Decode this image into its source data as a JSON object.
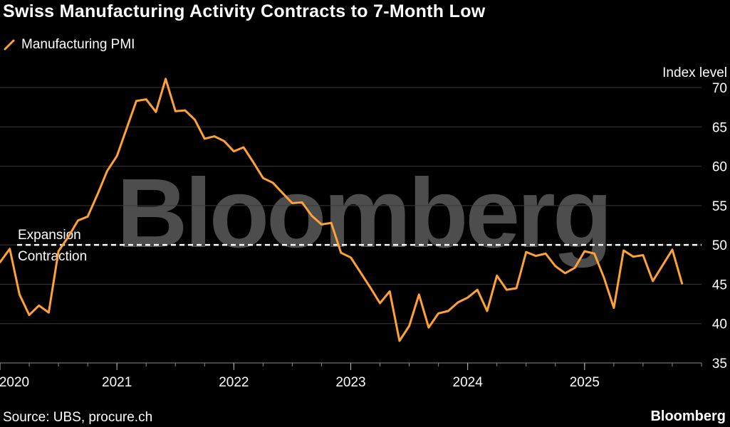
{
  "title": "Swiss Manufacturing Activity Contracts to 7-Month Low",
  "source": "Source: UBS, procure.ch",
  "brand": "Bloomberg",
  "watermark": "Bloomberg",
  "colors": {
    "background": "#000000",
    "line": "#ffa236",
    "grid": "#3a3a3a",
    "text": "#ffffff",
    "threshold": "#ffffff",
    "watermark": "#4d4d4d"
  },
  "chart_data": {
    "type": "line",
    "title": "Swiss Manufacturing Activity Contracts to 7-Month Low",
    "ylabel": "Index level",
    "xlabel": "",
    "ylim": [
      35,
      70
    ],
    "yticks": [
      35,
      40,
      45,
      50,
      55,
      60,
      65,
      70
    ],
    "xlim": [
      2020.0,
      2026.0
    ],
    "xticks": [
      {
        "value": 2020,
        "label": "2020"
      },
      {
        "value": 2021,
        "label": "2021"
      },
      {
        "value": 2022,
        "label": "2022"
      },
      {
        "value": 2023,
        "label": "2023"
      },
      {
        "value": 2024,
        "label": "2024"
      },
      {
        "value": 2025,
        "label": "2025"
      }
    ],
    "grid": true,
    "legend": {
      "position": "top-left",
      "entries": [
        "Manufacturing PMI"
      ]
    },
    "threshold": {
      "value": 50,
      "style": "dashed",
      "label_above": "Expansion",
      "label_below": "Contraction"
    },
    "series": [
      {
        "name": "Manufacturing PMI",
        "start": "2020-01",
        "frequency": "monthly",
        "values": [
          47.8,
          49.5,
          43.7,
          41.1,
          42.3,
          41.4,
          49.2,
          51.0,
          53.1,
          53.6,
          56.4,
          59.4,
          61.3,
          64.8,
          68.3,
          68.5,
          66.9,
          71.1,
          67.0,
          67.1,
          65.9,
          63.5,
          63.8,
          63.2,
          61.9,
          62.4,
          60.5,
          58.5,
          57.9,
          56.6,
          55.3,
          55.4,
          53.7,
          52.6,
          52.8,
          49.0,
          48.4,
          46.5,
          44.6,
          42.6,
          44.1,
          37.8,
          39.7,
          43.7,
          39.5,
          41.3,
          41.6,
          42.7,
          43.3,
          44.3,
          41.6,
          46.1,
          44.3,
          44.5,
          49.1,
          48.6,
          48.9,
          47.3,
          46.4,
          47.1,
          49.2,
          48.9,
          45.8,
          42.0,
          49.3,
          48.5,
          48.7,
          45.4,
          47.4,
          49.4,
          45.1
        ]
      }
    ]
  }
}
